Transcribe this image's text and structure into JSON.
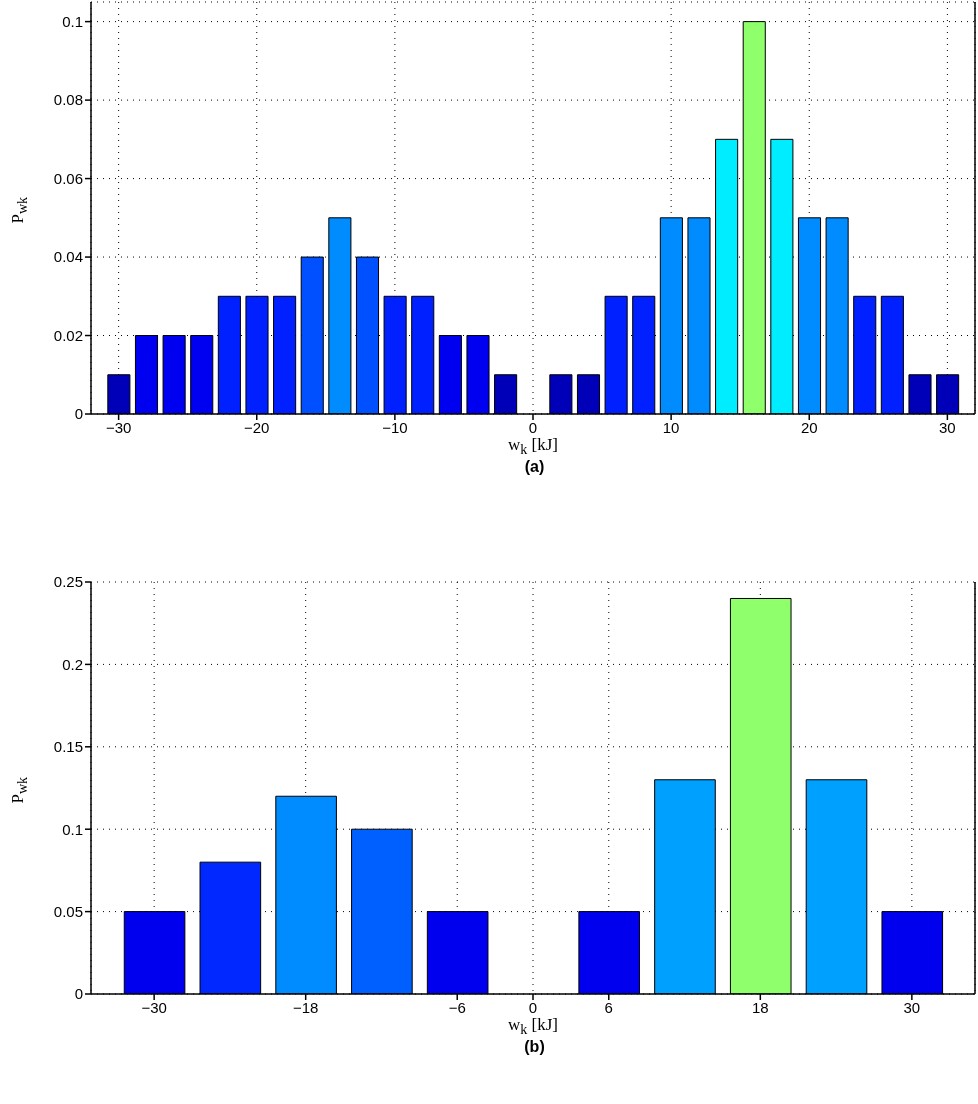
{
  "chart_data": [
    {
      "type": "bar",
      "xlabel": "w$_{k}$ [kJ]",
      "ylabel": "P$_{wk}$",
      "annotations": [
        "(a)"
      ],
      "x": [
        -30,
        -28,
        -26,
        -24,
        -22,
        -20,
        -18,
        -16,
        -14,
        -12,
        -10,
        -8,
        -6,
        -4,
        -2,
        0,
        2,
        4,
        6,
        8,
        10,
        12,
        14,
        16,
        18,
        20,
        22,
        24,
        26,
        28,
        30
      ],
      "values": [
        0.01,
        0.02,
        0.02,
        0.02,
        0.03,
        0.03,
        0.03,
        0.04,
        0.05,
        0.04,
        0.03,
        0.03,
        0.02,
        0.02,
        0.01,
        0,
        0.01,
        0.01,
        0.03,
        0.03,
        0.05,
        0.05,
        0.07,
        0.1,
        0.07,
        0.05,
        0.05,
        0.03,
        0.03,
        0.01,
        0.01
      ],
      "colors": [
        "#0000b8",
        "#0000f0",
        "#0000f0",
        "#0000f0",
        "#0020ff",
        "#0020ff",
        "#0020ff",
        "#0050ff",
        "#008cff",
        "#0050ff",
        "#0020ff",
        "#0020ff",
        "#0000f0",
        "#0000f0",
        "#0000b8",
        "#000080",
        "#0000b8",
        "#0000b8",
        "#0020ff",
        "#0020ff",
        "#008cff",
        "#008cff",
        "#00ecff",
        "#90ff6c",
        "#00ecff",
        "#008cff",
        "#008cff",
        "#0020ff",
        "#0020ff",
        "#0000b8",
        "#0000b8"
      ],
      "xlim": [
        -32,
        32
      ],
      "xticks": [
        {
          "value": -30,
          "label": "−30"
        },
        {
          "value": -20,
          "label": "−20"
        },
        {
          "value": -10,
          "label": "−10"
        },
        0,
        10,
        20,
        30
      ],
      "ylim": [
        0,
        0.105
      ],
      "yticks": [
        0,
        0.02,
        0.04,
        0.06,
        0.08,
        0.1
      ],
      "grid": true
    },
    {
      "type": "bar",
      "xlabel": "w$_{k}$ [kJ]",
      "ylabel": "P$_{wk}$",
      "annotations": [
        "(b)"
      ],
      "x": [
        -30,
        -24,
        -18,
        -12,
        -6,
        0,
        6,
        12,
        18,
        24,
        30
      ],
      "values": [
        0.05,
        0.08,
        0.12,
        0.1,
        0.05,
        0,
        0.05,
        0.13,
        0.24,
        0.13,
        0.05
      ],
      "colors": [
        "#0000ee",
        "#0028ff",
        "#008cff",
        "#0060ff",
        "#0000ee",
        "#000080",
        "#0000ee",
        "#00a0ff",
        "#90ff6c",
        "#00a0ff",
        "#0000ee"
      ],
      "xlim": [
        -35,
        35
      ],
      "xticks": [
        {
          "value": -30,
          "label": "−30"
        },
        {
          "value": -18,
          "label": "−18"
        },
        {
          "value": -6,
          "label": "−6"
        },
        0,
        6,
        18,
        30
      ],
      "ylim": [
        0,
        0.25
      ],
      "yticks": [
        0,
        0.05,
        0.1,
        0.15,
        0.2,
        0.25
      ],
      "grid": true
    }
  ]
}
